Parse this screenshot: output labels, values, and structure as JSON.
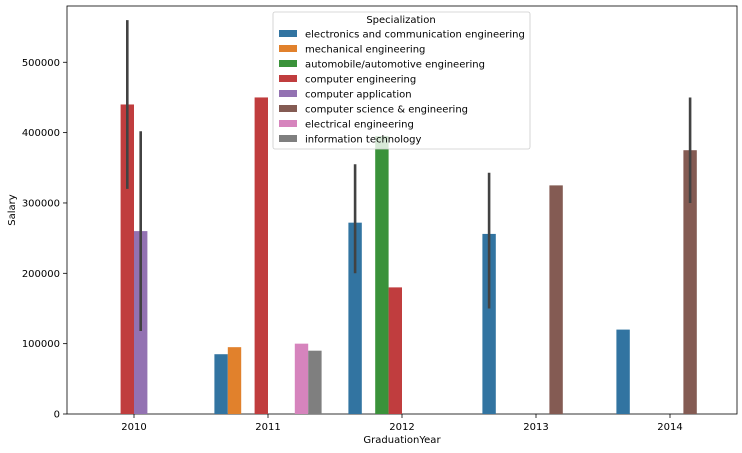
{
  "chart_data": {
    "type": "bar",
    "xlabel": "GraduationYear",
    "ylabel": "Salary",
    "ylim": [
      0,
      580000
    ],
    "yticks": [
      0,
      100000,
      200000,
      300000,
      400000,
      500000
    ],
    "ytick_labels": [
      "0",
      "100000",
      "200000",
      "300000",
      "400000",
      "500000"
    ],
    "categories": [
      "2010",
      "2011",
      "2012",
      "2013",
      "2014"
    ],
    "grid": false,
    "legend": {
      "title": "Specialization",
      "placement": "top-center"
    },
    "series": [
      {
        "name": "electronics and communication engineering",
        "color": "#3274a1",
        "values": [
          null,
          85000,
          272000,
          256000,
          120000
        ],
        "err_low": [
          null,
          null,
          200000,
          150000,
          null
        ],
        "err_high": [
          null,
          null,
          355000,
          343000,
          null
        ]
      },
      {
        "name": "mechanical engineering",
        "color": "#e1812c",
        "values": [
          null,
          95000,
          null,
          null,
          null
        ],
        "err_low": [
          null,
          null,
          null,
          null,
          null
        ],
        "err_high": [
          null,
          null,
          null,
          null,
          null
        ]
      },
      {
        "name": "automobile/automotive engineering",
        "color": "#3a923a",
        "values": [
          null,
          null,
          395000,
          null,
          null
        ],
        "err_low": [
          null,
          null,
          null,
          null,
          null
        ],
        "err_high": [
          null,
          null,
          null,
          null,
          null
        ]
      },
      {
        "name": "computer engineering",
        "color": "#c03d3e",
        "values": [
          440000,
          450000,
          180000,
          null,
          null
        ],
        "err_low": [
          320000,
          null,
          null,
          null,
          null
        ],
        "err_high": [
          560000,
          null,
          null,
          null,
          null
        ]
      },
      {
        "name": "computer application",
        "color": "#9372b2",
        "values": [
          260000,
          null,
          null,
          null,
          null
        ],
        "err_low": [
          118000,
          null,
          null,
          null,
          null
        ],
        "err_high": [
          402000,
          null,
          null,
          null,
          null
        ]
      },
      {
        "name": "computer science & engineering",
        "color": "#845b53",
        "values": [
          null,
          null,
          null,
          325000,
          375000
        ],
        "err_low": [
          null,
          null,
          null,
          null,
          300000
        ],
        "err_high": [
          null,
          null,
          null,
          null,
          450000
        ]
      },
      {
        "name": "electrical engineering",
        "color": "#d684bd",
        "values": [
          null,
          100000,
          null,
          null,
          null
        ],
        "err_low": [
          null,
          null,
          null,
          null,
          null
        ],
        "err_high": [
          null,
          null,
          null,
          null,
          null
        ]
      },
      {
        "name": "information technology",
        "color": "#7f7f7f",
        "values": [
          null,
          90000,
          null,
          null,
          null
        ],
        "err_low": [
          null,
          null,
          null,
          null,
          null
        ],
        "err_high": [
          null,
          null,
          null,
          null,
          null
        ]
      }
    ]
  }
}
